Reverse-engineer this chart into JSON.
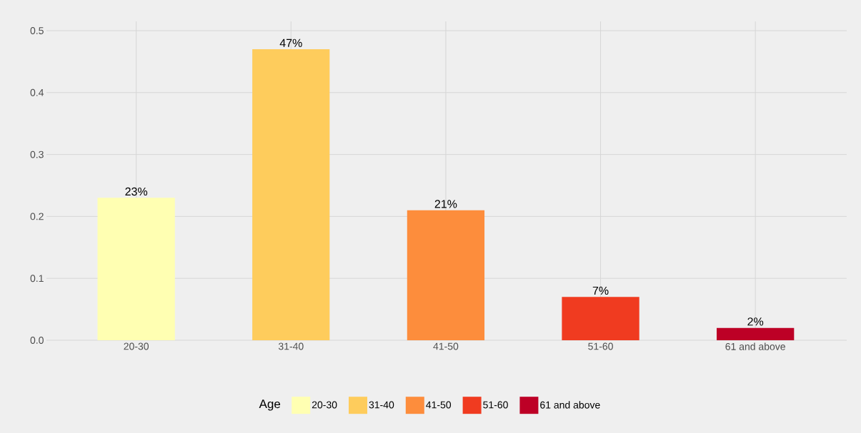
{
  "chart_data": {
    "type": "bar",
    "categories": [
      "20-30",
      "31-40",
      "41-50",
      "51-60",
      "61 and above"
    ],
    "series": [
      {
        "name": "20-30",
        "color": "#ffffb2",
        "values": [
          0.23,
          null,
          null,
          null,
          null
        ],
        "value_labels": [
          "23%",
          null,
          null,
          null,
          null
        ]
      },
      {
        "name": "31-40",
        "color": "#fecc5c",
        "values": [
          null,
          0.47,
          null,
          null,
          null
        ],
        "value_labels": [
          null,
          "47%",
          null,
          null,
          null
        ]
      },
      {
        "name": "41-50",
        "color": "#fd8d3c",
        "values": [
          null,
          null,
          0.21,
          null,
          null
        ],
        "value_labels": [
          null,
          null,
          "21%",
          null,
          null
        ]
      },
      {
        "name": "51-60",
        "color": "#f03b20",
        "values": [
          null,
          null,
          null,
          0.07,
          null
        ],
        "value_labels": [
          null,
          null,
          null,
          "7%",
          null
        ]
      },
      {
        "name": "61 and above",
        "color": "#bd0026",
        "values": [
          null,
          null,
          null,
          null,
          0.02
        ],
        "value_labels": [
          null,
          null,
          null,
          null,
          "2%"
        ]
      }
    ],
    "ylim": [
      0,
      0.515
    ],
    "yticks": [
      {
        "value": 0,
        "label": "0.0"
      },
      0.1,
      0.2,
      0.3,
      0.4,
      0.5
    ],
    "grid": true,
    "legend": "bottom",
    "legend_title": "Age"
  }
}
